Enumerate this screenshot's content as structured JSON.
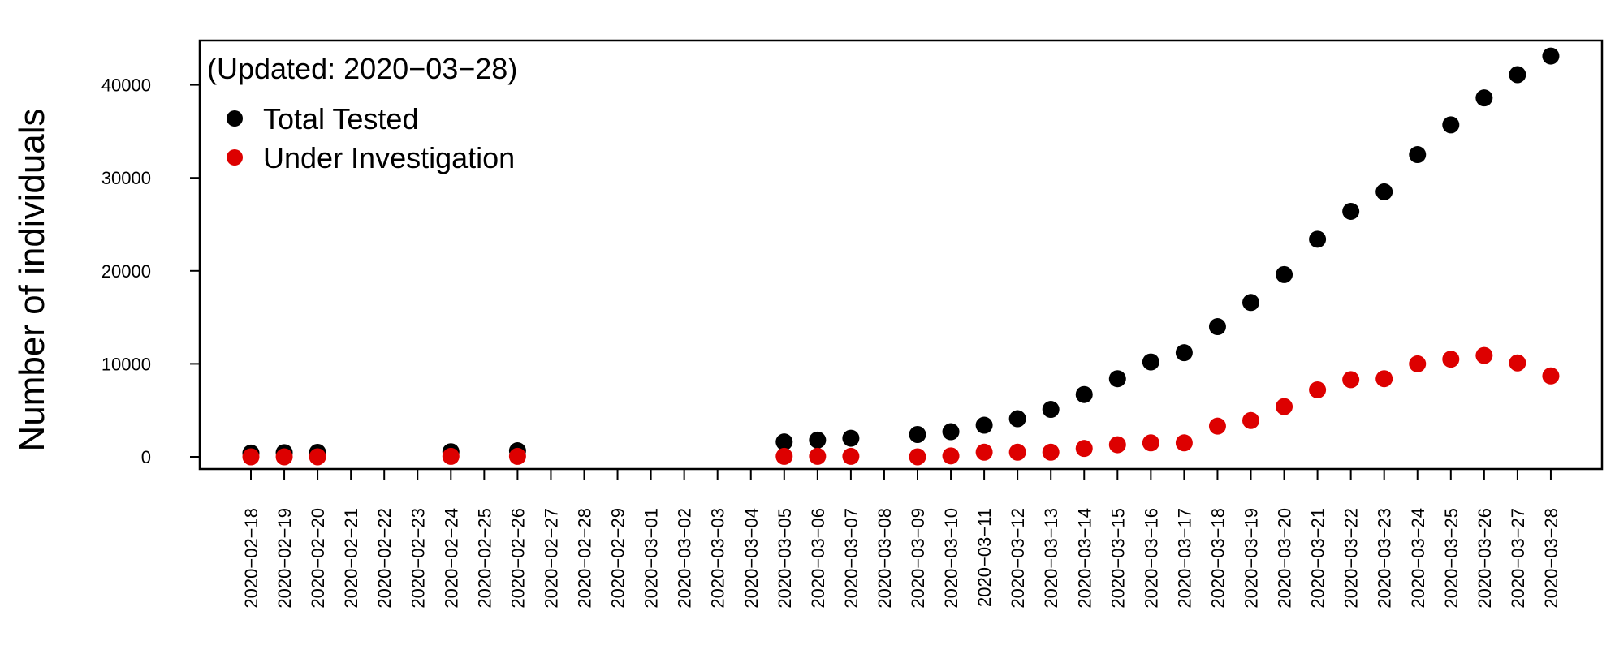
{
  "chart_data": {
    "type": "scatter",
    "title": "",
    "annotation": "(Updated: 2020−03−28)",
    "xlabel": "",
    "ylabel": "Number of individuals",
    "ylim": [
      -1200,
      45000
    ],
    "y_ticks": [
      "0",
      "10000",
      "20000",
      "30000",
      "40000"
    ],
    "y_tick_values": [
      0,
      10000,
      20000,
      30000,
      40000
    ],
    "legend_position": "top-left",
    "grid": false,
    "categories": [
      "2020−02−18",
      "2020−02−19",
      "2020−02−20",
      "2020−02−21",
      "2020−02−22",
      "2020−02−23",
      "2020−02−24",
      "2020−02−25",
      "2020−02−26",
      "2020−02−27",
      "2020−02−28",
      "2020−02−29",
      "2020−03−01",
      "2020−03−02",
      "2020−03−03",
      "2020−03−04",
      "2020−03−05",
      "2020−03−06",
      "2020−03−07",
      "2020−03−08",
      "2020−03−09",
      "2020−03−10",
      "2020−03−11",
      "2020−03−12",
      "2020−03−13",
      "2020−03−14",
      "2020−03−15",
      "2020−03−16",
      "2020−03−17",
      "2020−03−18",
      "2020−03−19",
      "2020−03−20",
      "2020−03−21",
      "2020−03−22",
      "2020−03−23",
      "2020−03−24",
      "2020−03−25",
      "2020−03−26",
      "2020−03−27",
      "2020−03−28"
    ],
    "series": [
      {
        "name": "Total Tested",
        "color": "#000000",
        "values": [
          400,
          450,
          480,
          null,
          null,
          null,
          550,
          null,
          650,
          null,
          null,
          null,
          null,
          null,
          null,
          null,
          1600,
          1800,
          2000,
          null,
          2400,
          2700,
          3400,
          4100,
          5100,
          6700,
          8400,
          10200,
          11200,
          14000,
          16600,
          19600,
          23400,
          26400,
          28500,
          32500,
          35700,
          38600,
          41100,
          43100
        ]
      },
      {
        "name": "Under Investigation",
        "color": "#dd0000",
        "values": [
          0,
          0,
          0,
          null,
          null,
          null,
          50,
          null,
          50,
          null,
          null,
          null,
          null,
          null,
          null,
          null,
          50,
          50,
          50,
          null,
          0,
          100,
          500,
          500,
          500,
          900,
          1300,
          1500,
          1500,
          3300,
          3900,
          5400,
          7200,
          8300,
          8400,
          10000,
          10500,
          10900,
          10100,
          8700
        ]
      }
    ]
  }
}
